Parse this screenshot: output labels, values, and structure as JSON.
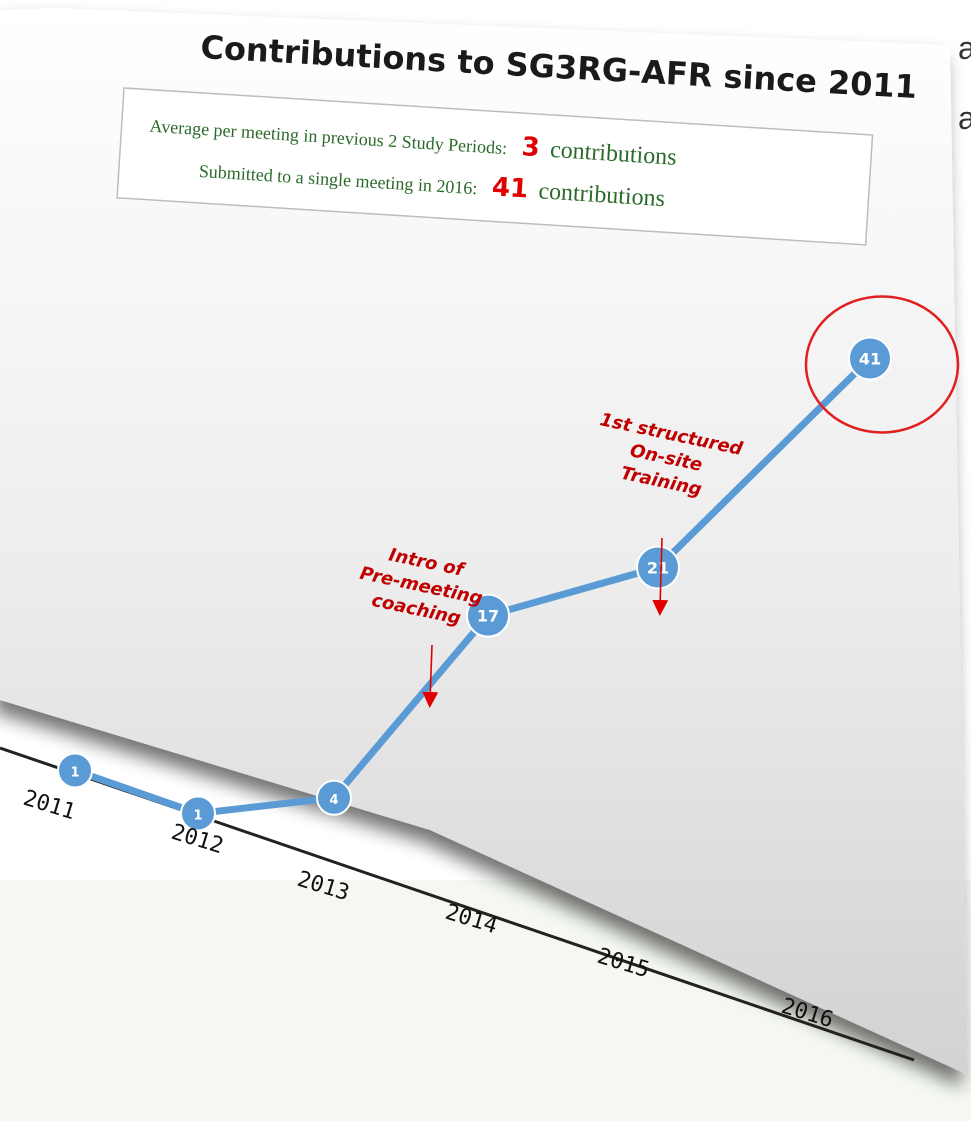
{
  "page_fragment": [
    "al",
    "a"
  ],
  "chart_data": {
    "type": "line",
    "title": "Contributions to SG3RG-AFR since 2011",
    "info_box": {
      "line1_text": "Average per meeting in previous 2 Study Periods:",
      "line1_value": "3",
      "line1_unit": "contributions",
      "line2_text": "Submitted to a single meeting  in 2016:",
      "line2_value": "41",
      "line2_unit": "contributions"
    },
    "x": [
      "2011",
      "2012",
      "2013",
      "2014",
      "2015",
      "2016"
    ],
    "series": [
      {
        "values": [
          1,
          1,
          4,
          17,
          21,
          41
        ],
        "color": "#5b9bd5"
      }
    ],
    "data_labels": [
      "1",
      "1",
      "4",
      "17",
      "21",
      "41"
    ],
    "highlight_index": 5,
    "highlight_color": "#e02020",
    "annotations": [
      {
        "x_index": 3,
        "lines": [
          "Intro of",
          "Pre-meeting",
          "coaching"
        ]
      },
      {
        "x_index": 4,
        "lines": [
          "1st structured",
          "On-site",
          "Training"
        ]
      }
    ],
    "annotation_color": "#c00000",
    "grid": false,
    "legend": "none"
  }
}
